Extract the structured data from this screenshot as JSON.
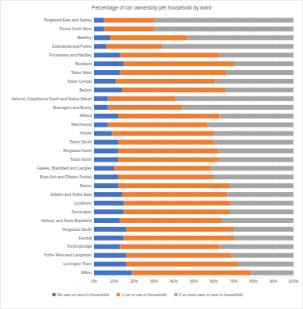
{
  "chart_data": {
    "type": "bar",
    "orientation": "horizontal",
    "stacked": true,
    "grid": true,
    "legend": "bottom",
    "title": "Percentage of car ownership per household by ward",
    "categories": [
      "Ringwood East and Sopley",
      "Forest North West",
      "Bashley",
      "Downlands and Forest",
      "Furzedown and Hardley",
      "Buckland",
      "Totton West",
      "Totton Central",
      "Becton",
      "Ashurst, Copythorne South and Netley Marsh",
      "Bransgore and Burley",
      "Milford",
      "Marchwood",
      "Hordle",
      "Totton South",
      "Ringwood North",
      "Totton North",
      "Fawley, Blackfield and Langley",
      "Butts Ash and Dibden Purlieu",
      "Barton",
      "Dibden and Hythe East",
      "Lyndhurst",
      "Pennington",
      "Holbury and North Blackfield",
      "Ringwood South",
      "Fernhill",
      "Fordingbridge",
      "Hythe West and Langdown",
      "Lymington Town",
      "Milton"
    ],
    "series": [
      {
        "name": "No cars or vans in household",
        "color": "#4472c4",
        "values": [
          5,
          5,
          8,
          6,
          13,
          15,
          13,
          11,
          14,
          7,
          7,
          12,
          7,
          9,
          12,
          12,
          12,
          10,
          12,
          12,
          14,
          15,
          15,
          13,
          16,
          15,
          13,
          16,
          16,
          19
        ]
      },
      {
        "name": "1 car or van in household",
        "color": "#ed7d31",
        "values": [
          25,
          25,
          39,
          28,
          50,
          55,
          53,
          50,
          52,
          34,
          37,
          51,
          50,
          51,
          48,
          50,
          50,
          49,
          48,
          56,
          53,
          53,
          53,
          51,
          54,
          55,
          50,
          53,
          56,
          60
        ]
      },
      {
        "name": "2 or more cars or vans in household",
        "color": "#a5a5a5",
        "values": [
          70,
          70,
          53,
          66,
          37,
          30,
          34,
          39,
          34,
          59,
          56,
          37,
          43,
          40,
          40,
          38,
          38,
          41,
          40,
          32,
          33,
          32,
          32,
          36,
          30,
          30,
          37,
          31,
          28,
          21
        ]
      }
    ],
    "xlim": [
      0,
      100
    ],
    "xticks": [
      {
        "value": 0,
        "label": "0%"
      },
      {
        "value": 10,
        "label": "10%"
      },
      {
        "value": 20,
        "label": "20%"
      },
      {
        "value": 30,
        "label": "30%"
      },
      {
        "value": 40,
        "label": "40%"
      },
      {
        "value": 50,
        "label": "50%"
      },
      {
        "value": 60,
        "label": "60%"
      },
      {
        "value": 70,
        "label": "70%"
      },
      {
        "value": 80,
        "label": "80%"
      },
      {
        "value": 90,
        "label": "90%"
      },
      {
        "value": 100,
        "label": "100%"
      }
    ]
  }
}
